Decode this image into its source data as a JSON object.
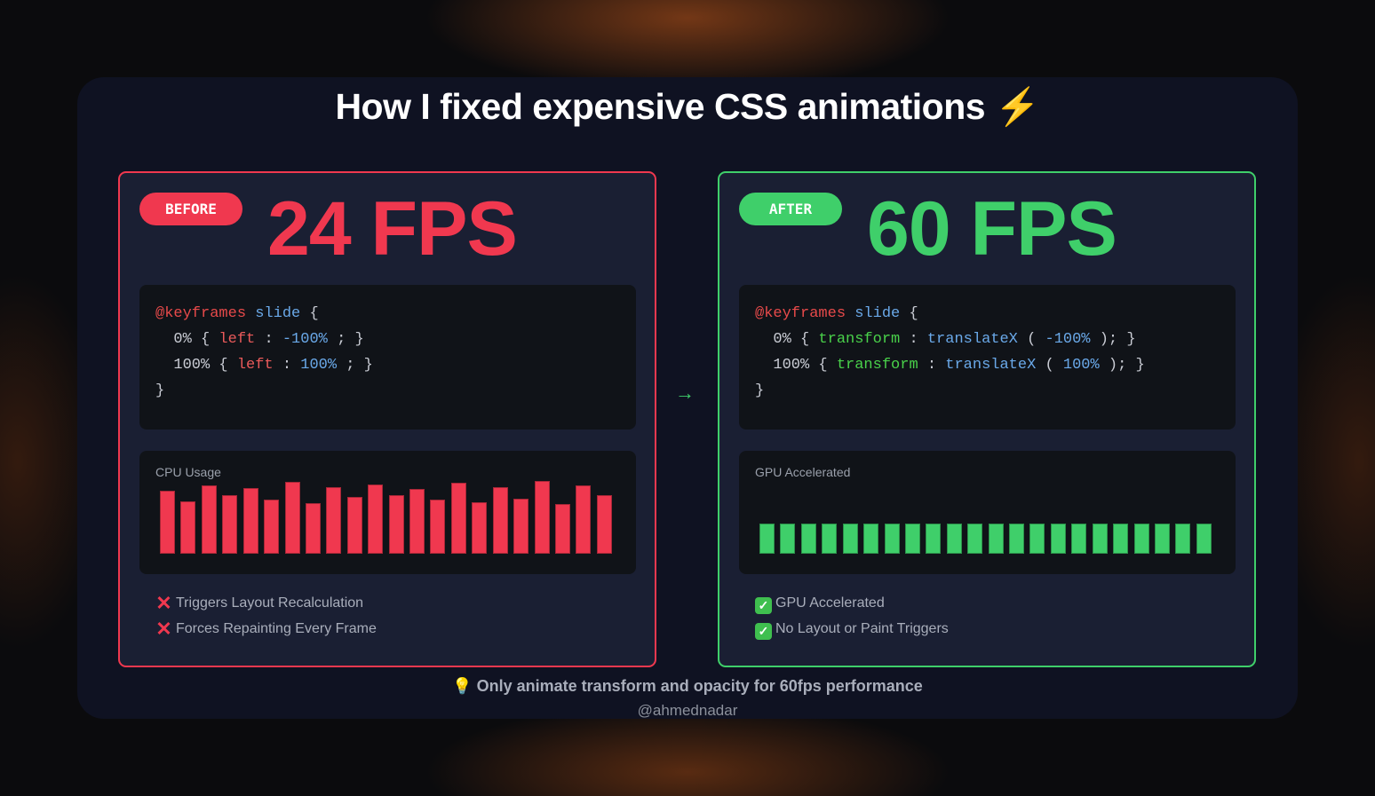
{
  "title": "How I fixed expensive CSS animations",
  "title_icon": "lightning-icon",
  "colors": {
    "before": "#f0384f",
    "after": "#3fcf6a"
  },
  "before": {
    "badge": "BEFORE",
    "fps": "24 FPS",
    "code": {
      "line1": [
        "@keyframes",
        "slide",
        "{"
      ],
      "line2": [
        "0%",
        "{",
        "left",
        ":",
        "-100%",
        ";",
        "}"
      ],
      "line3": [
        "100%",
        "{",
        "left",
        ":",
        "100%",
        ";",
        "}"
      ],
      "line4": "}"
    },
    "chart_label": "CPU Usage",
    "bars_pct": [
      86,
      72,
      94,
      80,
      90,
      75,
      99,
      69,
      92,
      78,
      95,
      81,
      89,
      74,
      97,
      71,
      91,
      76,
      100,
      68,
      94,
      80
    ],
    "checks": [
      "Triggers Layout Recalculation",
      "Forces Repainting Every Frame"
    ]
  },
  "after": {
    "badge": "AFTER",
    "fps": "60 FPS",
    "code": {
      "line1": [
        "@keyframes",
        "slide",
        "{"
      ],
      "line2": [
        "0%",
        "{",
        "transform",
        ":",
        "translateX",
        "(",
        "-100%",
        ");",
        "}"
      ],
      "line3": [
        "100%",
        "{",
        "transform",
        ":",
        "translateX",
        "(",
        "100%",
        ");",
        "}"
      ],
      "line4": "}"
    },
    "chart_label": "GPU Accelerated",
    "bars_pct": [
      42,
      42,
      42,
      42,
      42,
      42,
      42,
      42,
      42,
      42,
      42,
      42,
      42,
      42,
      42,
      42,
      42,
      42,
      42,
      42,
      42,
      42
    ],
    "checks": [
      "GPU Accelerated",
      "No Layout or Paint Triggers"
    ]
  },
  "arrow": "→",
  "tip": "Only animate transform and opacity for 60fps performance",
  "handle": "@ahmednadar"
}
